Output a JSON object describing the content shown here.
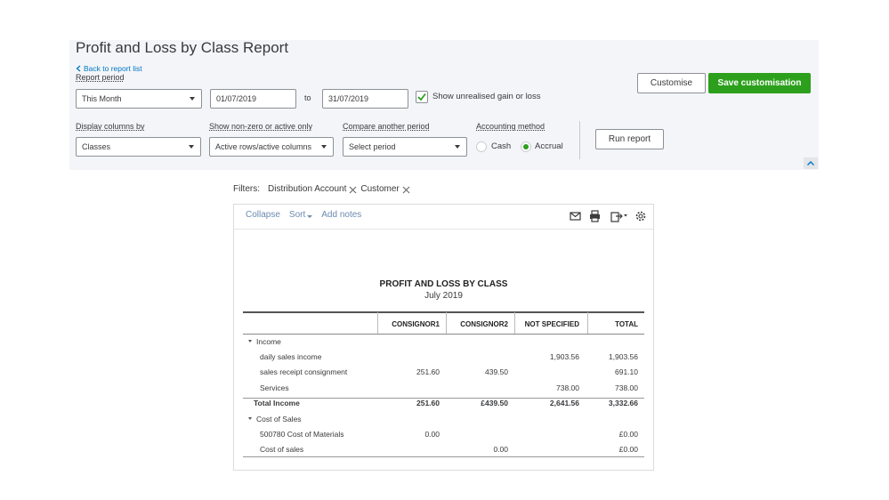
{
  "header": {
    "title": "Profit and Loss by Class Report",
    "back_link": "Back to report list"
  },
  "controls": {
    "report_period_label": "Report period",
    "period": "This Month",
    "from_date": "01/07/2019",
    "to_label": "to",
    "to_date": "31/07/2019",
    "unrealised": "Show unrealised gain or loss",
    "customise": "Customise",
    "save_customisation": "Save customisation",
    "display_columns_label": "Display columns by",
    "display_columns": "Classes",
    "show_nonzero_label": "Show non-zero or active only",
    "show_nonzero": "Active rows/active columns",
    "compare_label": "Compare another period",
    "compare": "Select period",
    "accounting_label": "Accounting method",
    "cash": "Cash",
    "accrual": "Accrual",
    "run_report": "Run report"
  },
  "filters": {
    "label": "Filters:",
    "items": [
      "Distribution Account",
      "Customer"
    ]
  },
  "toolbar": [
    "Collapse",
    "Sort",
    "Add notes"
  ],
  "report": {
    "title": "PROFIT AND LOSS BY CLASS",
    "subtitle": "July 2019",
    "columns": [
      "CONSIGNOR1",
      "CONSIGNOR2",
      "NOT SPECIFIED",
      "TOTAL"
    ],
    "rows": [
      {
        "kind": "section",
        "label": "Income",
        "values": [
          null,
          null,
          null,
          null
        ]
      },
      {
        "kind": "item",
        "label": "daily sales income",
        "values": [
          null,
          null,
          "1,903.56",
          "1,903.56"
        ]
      },
      {
        "kind": "item",
        "label": "sales receipt consignment",
        "values": [
          "251.60",
          "439.50",
          null,
          "691.10"
        ]
      },
      {
        "kind": "item",
        "label": "Services",
        "values": [
          null,
          null,
          "738.00",
          "738.00"
        ]
      },
      {
        "kind": "total",
        "label": "Total Income",
        "values": [
          "251.60",
          "£439.50",
          "2,641.56",
          "3,332.66"
        ]
      },
      {
        "kind": "section",
        "label": "Cost of Sales",
        "values": [
          null,
          null,
          null,
          null
        ]
      },
      {
        "kind": "item",
        "label": "500780 Cost of Materials",
        "values": [
          "0.00",
          null,
          null,
          "£0.00"
        ]
      },
      {
        "kind": "item",
        "label": "Cost of sales",
        "values": [
          null,
          "0.00",
          null,
          "£0.00"
        ]
      }
    ]
  }
}
